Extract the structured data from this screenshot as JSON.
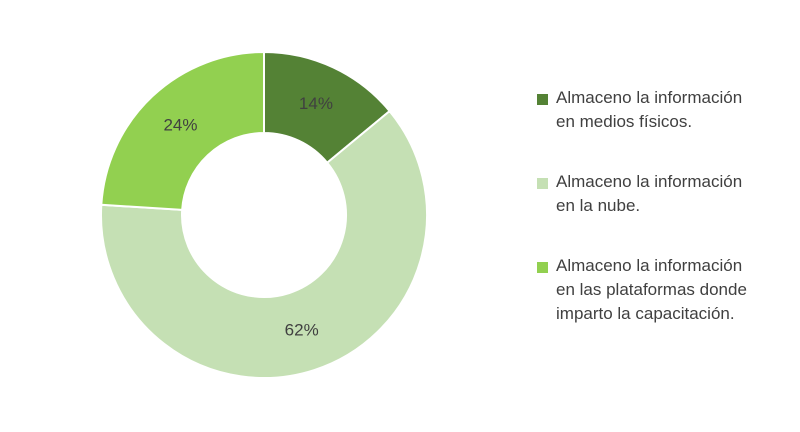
{
  "chart_data": {
    "type": "pie",
    "donut": true,
    "legend_position": "right",
    "categories": [
      "Almaceno la información\nen medios físicos.",
      "Almaceno la información\nen la nube.",
      "Almaceno la información\nen las plataformas donde\nimparto la capacitación."
    ],
    "values": [
      14,
      62,
      24
    ],
    "value_labels": [
      "14%",
      "62%",
      "24%"
    ],
    "colors": [
      "#548235",
      "#c5e0b4",
      "#92d050"
    ]
  }
}
